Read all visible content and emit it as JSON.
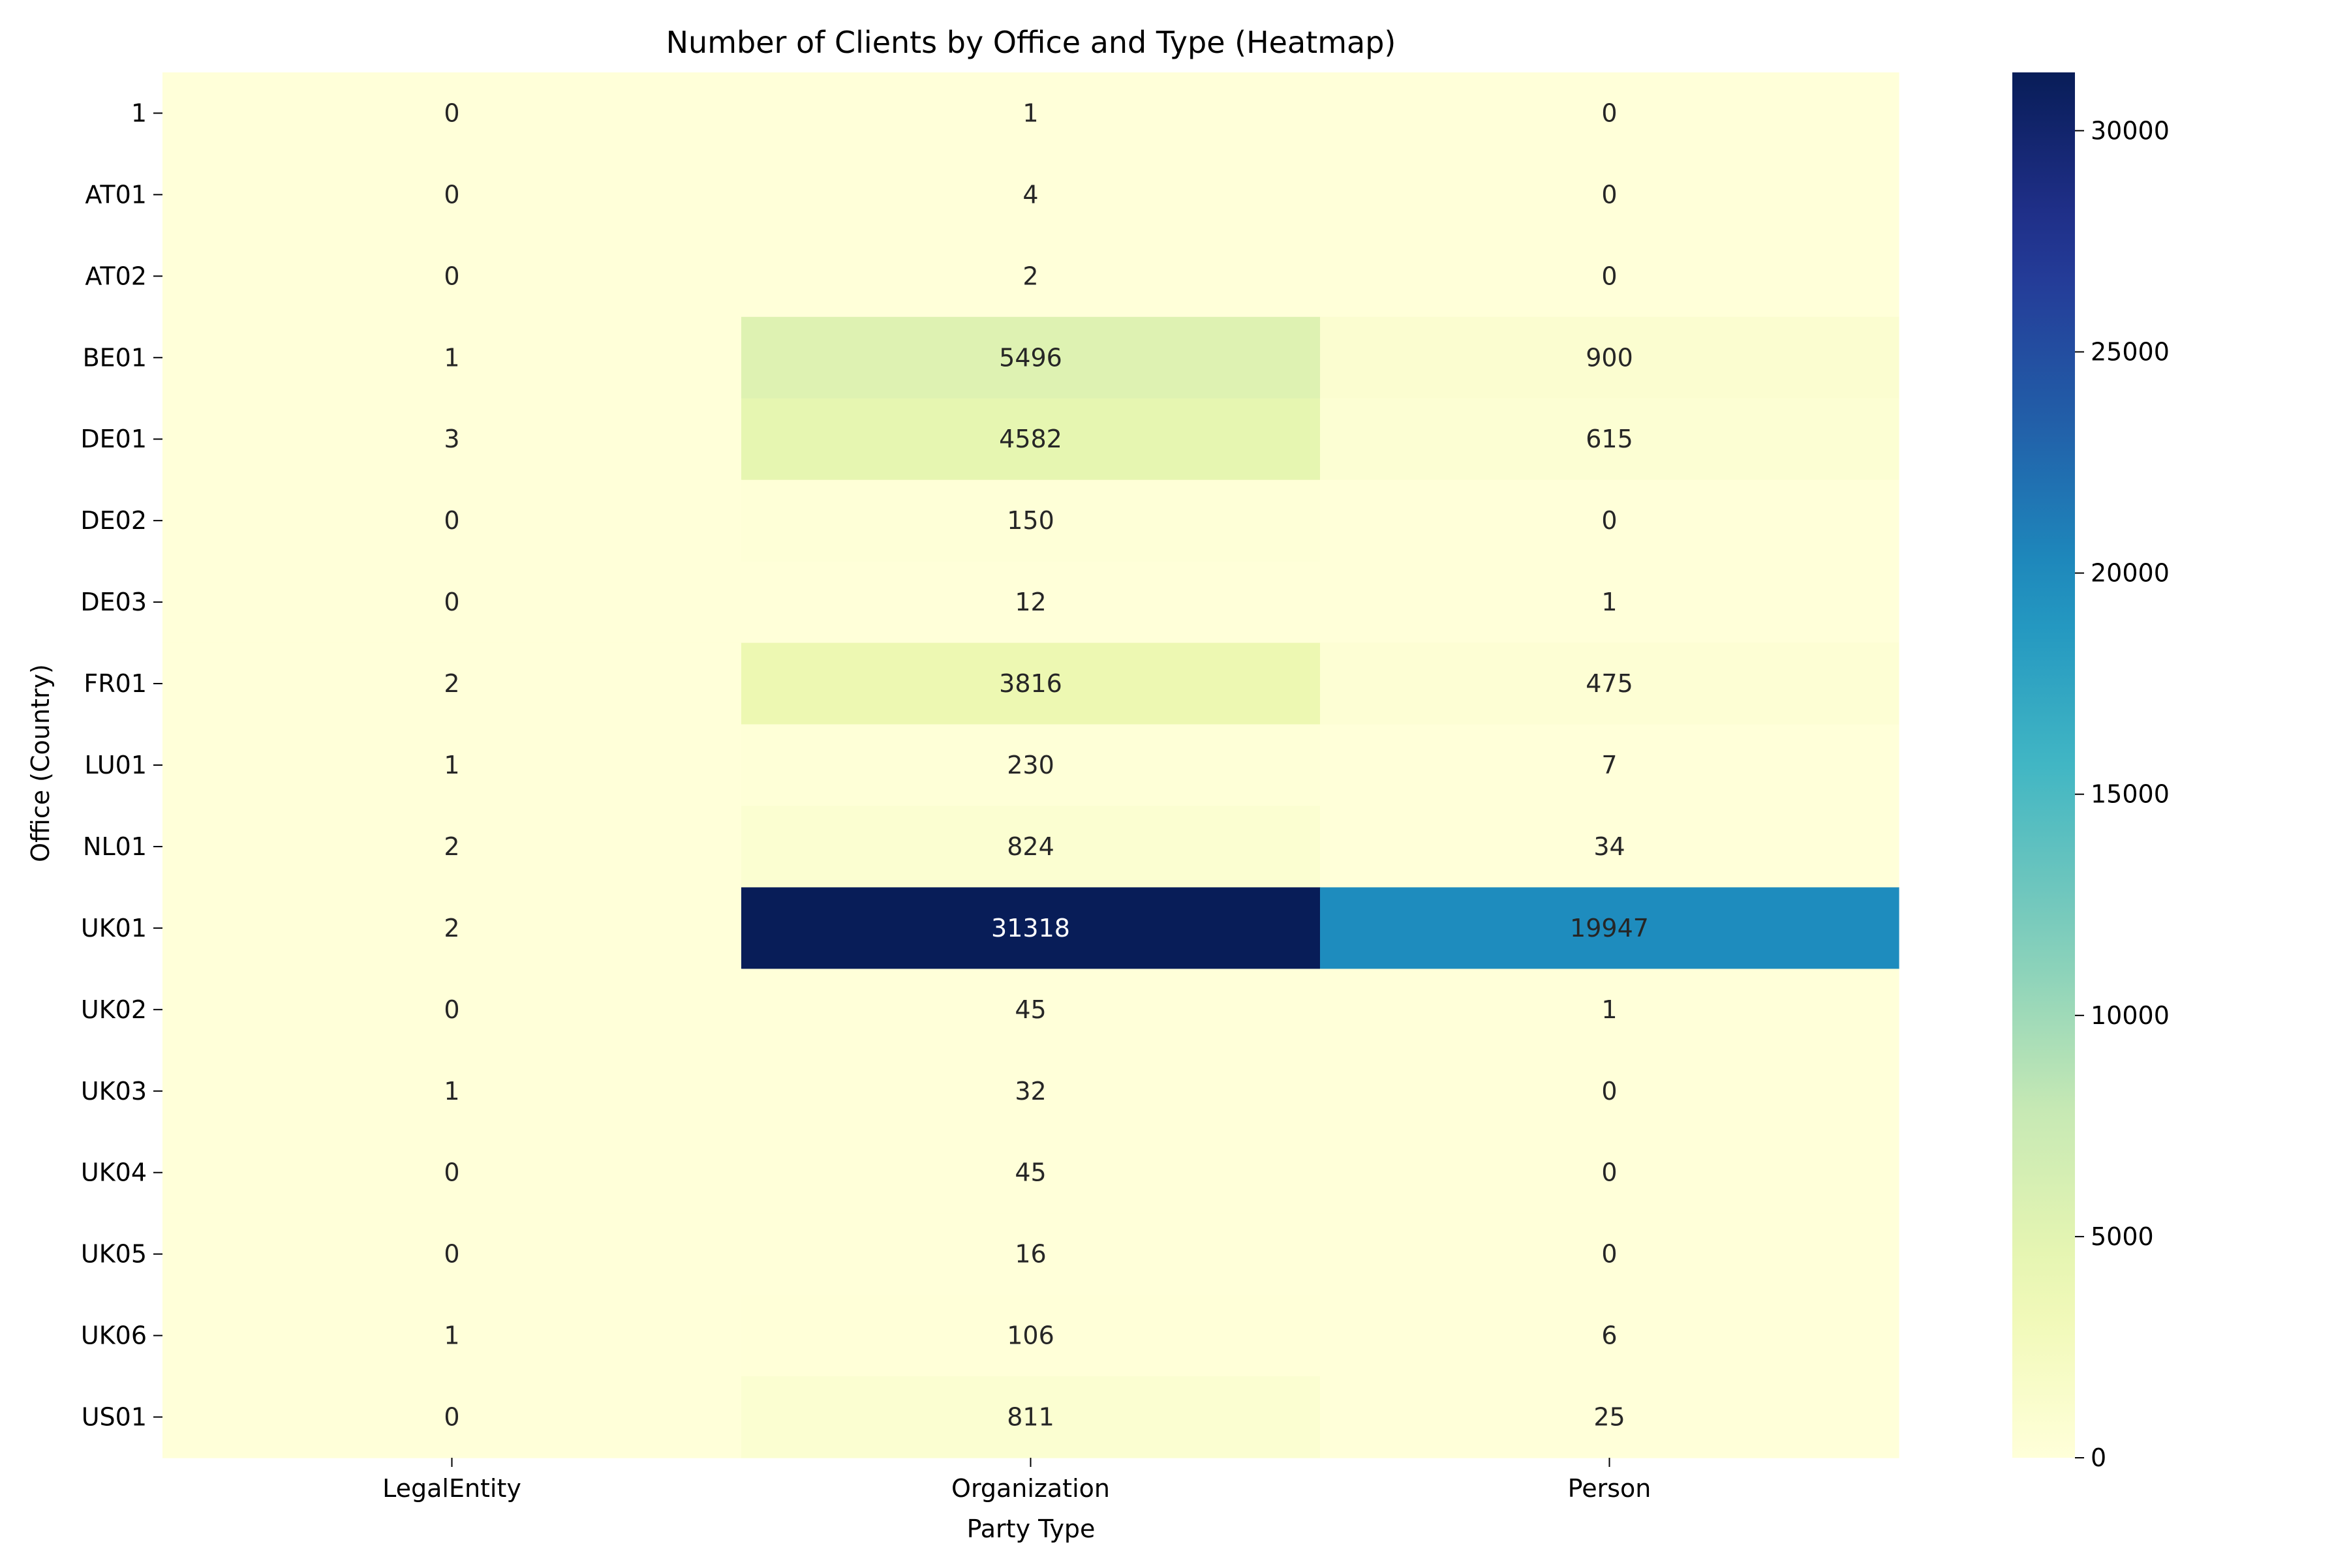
{
  "chart_data": {
    "type": "heatmap",
    "title": "Number of Clients by Office and Type (Heatmap)",
    "xlabel": "Party Type",
    "ylabel": "Office (Country)",
    "x_categories": [
      "LegalEntity",
      "Organization",
      "Person"
    ],
    "y_categories": [
      "1",
      "AT01",
      "AT02",
      "BE01",
      "DE01",
      "DE02",
      "DE03",
      "FR01",
      "LU01",
      "NL01",
      "UK01",
      "UK02",
      "UK03",
      "UK04",
      "UK05",
      "UK06",
      "US01"
    ],
    "values": [
      [
        0,
        1,
        0
      ],
      [
        0,
        4,
        0
      ],
      [
        0,
        2,
        0
      ],
      [
        1,
        5496,
        900
      ],
      [
        3,
        4582,
        615
      ],
      [
        0,
        150,
        0
      ],
      [
        0,
        12,
        1
      ],
      [
        2,
        3816,
        475
      ],
      [
        1,
        230,
        7
      ],
      [
        2,
        824,
        34
      ],
      [
        2,
        31318,
        19947
      ],
      [
        0,
        45,
        1
      ],
      [
        1,
        32,
        0
      ],
      [
        0,
        45,
        0
      ],
      [
        0,
        16,
        0
      ],
      [
        1,
        106,
        6
      ],
      [
        0,
        811,
        25
      ]
    ],
    "colormap": "YlGnBu",
    "colorbar": {
      "range": [
        0,
        31318
      ],
      "ticks": [
        0,
        5000,
        10000,
        15000,
        20000,
        25000,
        30000
      ]
    },
    "annotations": true,
    "grid": false
  }
}
